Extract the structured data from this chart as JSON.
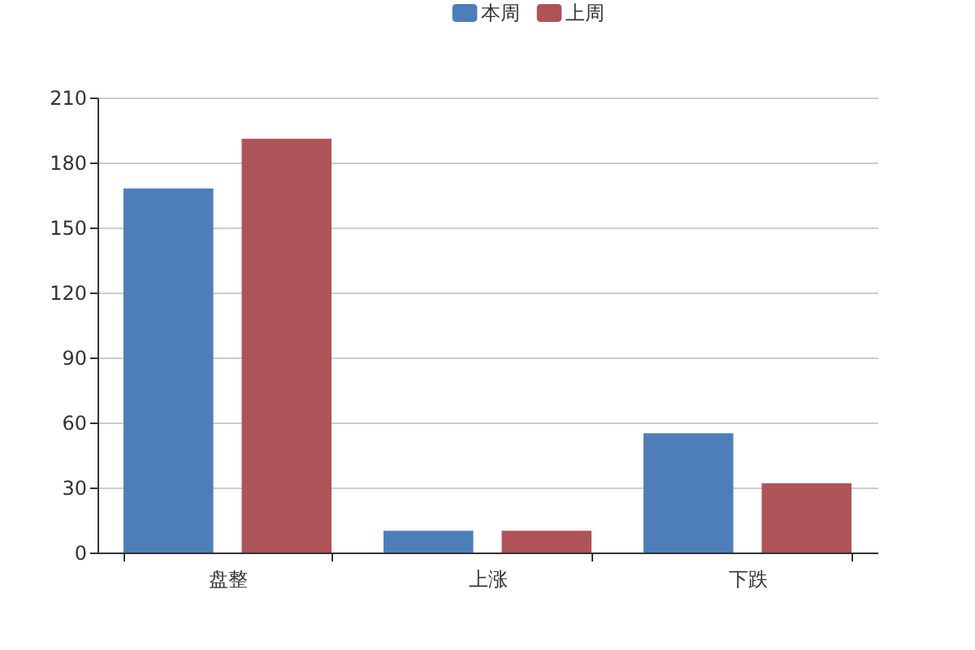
{
  "chart_data": {
    "type": "bar",
    "categories": [
      "盘整",
      "上涨",
      "下跌"
    ],
    "series": [
      {
        "name": "本周",
        "color": "#4e7eba",
        "values": [
          168,
          10,
          55
        ]
      },
      {
        "name": "上周",
        "color": "#ae5458",
        "values": [
          191,
          10,
          32
        ]
      }
    ],
    "ylim": [
      0,
      210
    ],
    "yticks": [
      0,
      30,
      60,
      90,
      120,
      150,
      180,
      210
    ],
    "grid": "y",
    "legend": "top"
  }
}
